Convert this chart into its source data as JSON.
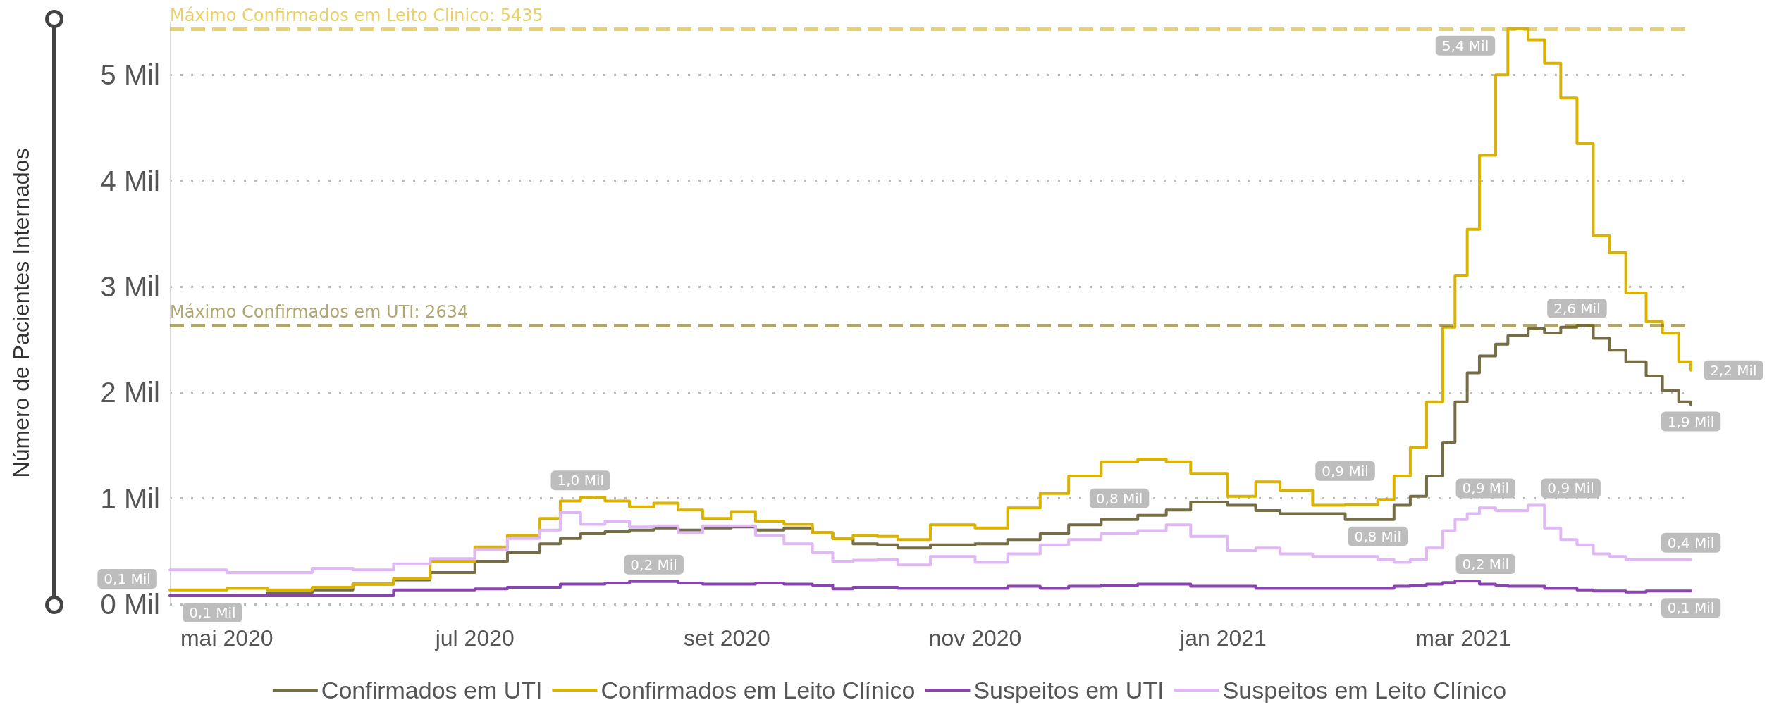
{
  "chart_data": {
    "type": "step",
    "ylabel": "Número de Pacientes Internados",
    "x": [
      "2020-04-17",
      "2020-05-01",
      "2020-05-11",
      "2020-05-22",
      "2020-06-01",
      "2020-06-11",
      "2020-06-20",
      "2020-07-01",
      "2020-07-09",
      "2020-07-17",
      "2020-07-22",
      "2020-07-27",
      "2020-08-02",
      "2020-08-08",
      "2020-08-14",
      "2020-08-20",
      "2020-08-26",
      "2020-09-02",
      "2020-09-08",
      "2020-09-15",
      "2020-09-22",
      "2020-09-27",
      "2020-10-02",
      "2020-10-08",
      "2020-10-13",
      "2020-10-21",
      "2020-11-01",
      "2020-11-09",
      "2020-11-17",
      "2020-11-24",
      "2020-12-02",
      "2020-12-11",
      "2020-12-18",
      "2020-12-24",
      "2021-01-02",
      "2021-01-09",
      "2021-01-15",
      "2021-01-23",
      "2021-01-31",
      "2021-02-08",
      "2021-02-12",
      "2021-02-16",
      "2021-02-20",
      "2021-02-24",
      "2021-02-27",
      "2021-03-02",
      "2021-03-05",
      "2021-03-09",
      "2021-03-12",
      "2021-03-17",
      "2021-03-21",
      "2021-03-25",
      "2021-03-29",
      "2021-04-02",
      "2021-04-06",
      "2021-04-10",
      "2021-04-15",
      "2021-04-19",
      "2021-04-23",
      "2021-04-26"
    ],
    "series": [
      {
        "name": "Confirmados em UTI",
        "color": "#756d46",
        "values": [
          0.08,
          0.08,
          0.11,
          0.135,
          0.19,
          0.23,
          0.3,
          0.405,
          0.485,
          0.57,
          0.62,
          0.665,
          0.685,
          0.7,
          0.72,
          0.7,
          0.72,
          0.73,
          0.7,
          0.72,
          0.675,
          0.62,
          0.57,
          0.56,
          0.53,
          0.56,
          0.57,
          0.61,
          0.665,
          0.75,
          0.8,
          0.84,
          0.89,
          0.965,
          0.935,
          0.885,
          0.855,
          0.855,
          0.8,
          0.8,
          0.935,
          1.02,
          1.21,
          1.53,
          1.91,
          2.185,
          2.345,
          2.455,
          2.535,
          2.6,
          2.56,
          2.615,
          2.634,
          2.51,
          2.4,
          2.29,
          2.155,
          2.02,
          1.91,
          1.885
        ],
        "value_labels": [
          "0,1 Mil",
          null,
          null,
          null,
          null,
          null,
          null,
          null,
          null,
          null,
          null,
          null,
          null,
          null,
          null,
          null,
          null,
          null,
          null,
          null,
          null,
          null,
          null,
          null,
          null,
          null,
          null,
          null,
          null,
          null,
          null,
          "0,8 Mil",
          null,
          null,
          null,
          null,
          null,
          null,
          null,
          "0,8 Mil",
          null,
          null,
          null,
          null,
          null,
          null,
          null,
          null,
          null,
          null,
          null,
          null,
          "2,6 Mil",
          null,
          null,
          null,
          null,
          null,
          null,
          "1,9 Mil"
        ]
      },
      {
        "name": "Confirmados em Leito Clínico",
        "color": "#d9b300",
        "values": [
          0.135,
          0.15,
          0.135,
          0.16,
          0.19,
          0.245,
          0.405,
          0.54,
          0.65,
          0.81,
          0.975,
          1.01,
          0.975,
          0.92,
          0.955,
          0.89,
          0.81,
          0.875,
          0.785,
          0.755,
          0.675,
          0.62,
          0.65,
          0.64,
          0.61,
          0.75,
          0.72,
          0.91,
          1.045,
          1.21,
          1.345,
          1.37,
          1.345,
          1.235,
          1.02,
          1.155,
          1.075,
          0.935,
          0.94,
          0.99,
          1.21,
          1.48,
          1.91,
          2.615,
          3.105,
          3.54,
          4.24,
          5,
          5.435,
          5.33,
          5.11,
          4.78,
          4.35,
          3.48,
          3.32,
          2.94,
          2.67,
          2.56,
          2.29,
          2.21
        ],
        "value_labels": [
          null,
          null,
          null,
          null,
          null,
          null,
          null,
          null,
          null,
          null,
          null,
          "1,0 Mil",
          null,
          null,
          null,
          null,
          null,
          null,
          null,
          null,
          null,
          null,
          null,
          null,
          null,
          null,
          null,
          null,
          null,
          null,
          null,
          null,
          null,
          null,
          null,
          null,
          null,
          null,
          "0,9 Mil",
          null,
          null,
          null,
          null,
          null,
          null,
          null,
          null,
          null,
          "5,4 Mil",
          null,
          null,
          null,
          null,
          null,
          null,
          null,
          null,
          null,
          null,
          "2,2 Mil"
        ]
      },
      {
        "name": "Suspeitos em UTI",
        "color": "#8a44b0",
        "values": [
          0.08,
          0.08,
          0.08,
          0.08,
          0.08,
          0.135,
          0.135,
          0.145,
          0.16,
          0.16,
          0.19,
          0.19,
          0.2,
          0.215,
          0.215,
          0.2,
          0.19,
          0.19,
          0.2,
          0.19,
          0.18,
          0.145,
          0.16,
          0.16,
          0.15,
          0.15,
          0.15,
          0.17,
          0.15,
          0.17,
          0.18,
          0.19,
          0.19,
          0.17,
          0.17,
          0.15,
          0.15,
          0.15,
          0.15,
          0.15,
          0.17,
          0.18,
          0.19,
          0.205,
          0.22,
          0.22,
          0.19,
          0.18,
          0.17,
          0.17,
          0.15,
          0.15,
          0.135,
          0.125,
          0.125,
          0.115,
          0.125,
          0.125,
          0.125,
          0.125
        ],
        "value_labels": [
          "0,1 Mil",
          null,
          null,
          null,
          null,
          null,
          null,
          null,
          null,
          null,
          null,
          null,
          null,
          null,
          "0,2 Mil",
          null,
          null,
          null,
          null,
          null,
          null,
          null,
          null,
          null,
          null,
          null,
          null,
          null,
          null,
          null,
          null,
          null,
          null,
          null,
          null,
          null,
          null,
          null,
          null,
          null,
          null,
          null,
          null,
          null,
          null,
          "0,2 Mil",
          null,
          null,
          null,
          null,
          null,
          null,
          null,
          null,
          null,
          null,
          null,
          null,
          null,
          "0,1 Mil"
        ]
      },
      {
        "name": "Suspeitos em Leito Clínico",
        "color": "#e0b8f5",
        "values": [
          0.325,
          0.3,
          0.3,
          0.34,
          0.325,
          0.38,
          0.43,
          0.515,
          0.62,
          0.7,
          0.865,
          0.755,
          0.785,
          0.73,
          0.74,
          0.675,
          0.74,
          0.74,
          0.65,
          0.57,
          0.485,
          0.405,
          0.415,
          0.42,
          0.37,
          0.45,
          0.395,
          0.475,
          0.56,
          0.61,
          0.665,
          0.695,
          0.75,
          0.64,
          0.505,
          0.53,
          0.475,
          0.45,
          0.45,
          0.42,
          0.395,
          0.42,
          0.53,
          0.695,
          0.8,
          0.855,
          0.91,
          0.885,
          0.885,
          0.935,
          0.72,
          0.61,
          0.56,
          0.475,
          0.45,
          0.42,
          0.42,
          0.42,
          0.42,
          0.42
        ],
        "value_labels": [
          null,
          null,
          null,
          null,
          null,
          null,
          null,
          null,
          null,
          null,
          null,
          null,
          null,
          null,
          null,
          null,
          null,
          null,
          null,
          null,
          null,
          null,
          null,
          null,
          null,
          null,
          null,
          null,
          null,
          null,
          null,
          null,
          null,
          null,
          null,
          null,
          null,
          null,
          null,
          null,
          null,
          null,
          null,
          null,
          null,
          "0,9 Mil",
          null,
          null,
          null,
          "0,9 Mil",
          null,
          null,
          null,
          null,
          null,
          null,
          null,
          null,
          null,
          "0,4 Mil"
        ]
      }
    ],
    "xlim": [
      "2020-04-17",
      "2021-04-26"
    ],
    "xticks": [
      {
        "value": "2020-05-01",
        "label": "mai 2020"
      },
      {
        "value": "2020-07-01",
        "label": "jul 2020"
      },
      {
        "value": "2020-09-01",
        "label": "set 2020"
      },
      {
        "value": "2020-11-01",
        "label": "nov 2020"
      },
      {
        "value": "2021-01-01",
        "label": "jan 2021"
      },
      {
        "value": "2021-03-01",
        "label": "mar 2021"
      }
    ],
    "ylim": [
      0,
      5.5
    ],
    "yticks": [
      {
        "value": 0,
        "label": "0 Mil"
      },
      {
        "value": 1,
        "label": "1 Mil"
      },
      {
        "value": 2,
        "label": "2 Mil"
      },
      {
        "value": 3,
        "label": "3 Mil"
      },
      {
        "value": 4,
        "label": "4 Mil"
      },
      {
        "value": 5,
        "label": "5 Mil"
      }
    ],
    "ref_lines": [
      {
        "axis": "y",
        "value": 5.435,
        "label": "Máximo Confirmados em Leito Clinico: 5435",
        "color": "#d9b300",
        "line_style": "dashed"
      },
      {
        "axis": "y",
        "value": 2.634,
        "label": "Máximo Confirmados em UTI: 2634",
        "color": "#7a6a10",
        "line_style": "dashed"
      }
    ],
    "grid": "y",
    "legend": "bottom",
    "marker": "none",
    "line_style": "solid"
  }
}
